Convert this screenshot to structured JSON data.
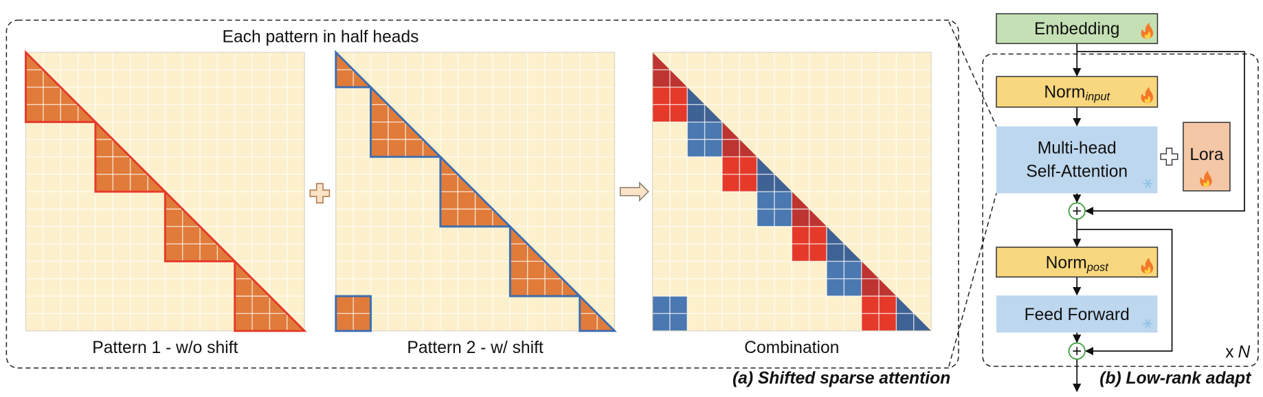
{
  "panel_a": {
    "title": "Each pattern in half heads",
    "patterns": [
      "Pattern 1 - w/o shift",
      "Pattern 2 - w/ shift",
      "Combination"
    ],
    "caption": "(a) Shifted sparse attention"
  },
  "panel_b": {
    "embedding": "Embedding",
    "norm_input": {
      "text": "Norm",
      "subscript": "input"
    },
    "attention": [
      "Multi-head",
      "Self-Attention"
    ],
    "lora": "Lora",
    "norm_post": {
      "text": "Norm",
      "subscript": "post"
    },
    "feed_forward": "Feed Forward",
    "repeat": {
      "prefix": "x",
      "symbol": "N"
    },
    "caption": "(b) Low-rank adapt"
  }
}
